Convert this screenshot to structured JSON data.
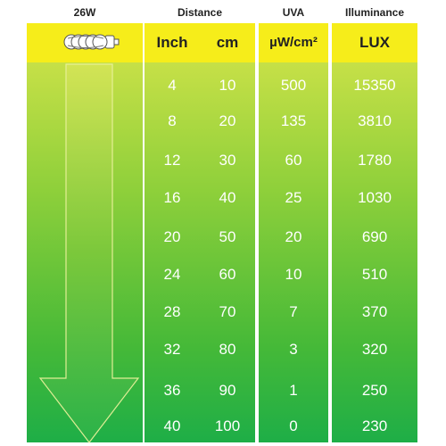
{
  "headers": {
    "wattage": "26W",
    "distance": "Distance",
    "uva": "UVA",
    "illuminance": "Illuminance"
  },
  "units": {
    "inch": "Inch",
    "cm": "cm",
    "uva": "µW/cm²",
    "lux": "LUX"
  },
  "rows": [
    {
      "inch": "4",
      "cm": "10",
      "uva": "500",
      "lux": "15350"
    },
    {
      "inch": "8",
      "cm": "20",
      "uva": "135",
      "lux": "3810"
    },
    {
      "inch": "12",
      "cm": "30",
      "uva": "60",
      "lux": "1780"
    },
    {
      "inch": "16",
      "cm": "40",
      "uva": "25",
      "lux": "1030"
    },
    {
      "inch": "20",
      "cm": "50",
      "uva": "20",
      "lux": "690"
    },
    {
      "inch": "24",
      "cm": "60",
      "uva": "10",
      "lux": "510"
    },
    {
      "inch": "28",
      "cm": "70",
      "uva": "7",
      "lux": "370"
    },
    {
      "inch": "32",
      "cm": "80",
      "uva": "3",
      "lux": "320"
    },
    {
      "inch": "36",
      "cm": "90",
      "uva": "1",
      "lux": "250"
    },
    {
      "inch": "40",
      "cm": "100",
      "uva": "0",
      "lux": "230"
    }
  ],
  "icons": {
    "bulb": "compact-fluorescent-bulb-icon",
    "arrow": "down-arrow-icon"
  },
  "colors": {
    "yellow": "#f6ed1a",
    "green_top": "#c6e047",
    "green_bottom": "#1eae47"
  }
}
